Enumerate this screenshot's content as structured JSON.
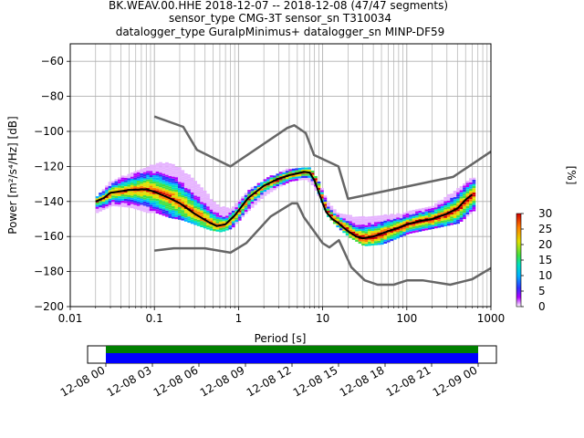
{
  "title_lines": [
    "BK.WEAV.00.HHE   2018-12-07 -- 2018-12-08  (47/47 segments)",
    "sensor_type CMG-3T sensor_sn T310034",
    "datalogger_type GuralpMinimus+ datalogger_sn MINP-DF59"
  ],
  "chart_data": {
    "type": "heatmap",
    "xlabel": "Period [s]",
    "ylabel": "Power [m²/s⁴/Hz] [dB]",
    "x_scale": "log",
    "xlim": [
      0.01,
      1000
    ],
    "ylim": [
      -200,
      -50
    ],
    "x_ticks": [
      0.01,
      0.1,
      1,
      10,
      100,
      1000
    ],
    "x_tick_labels": [
      "0.01",
      "0.1",
      "1",
      "10",
      "100",
      "1000"
    ],
    "y_ticks": [
      -60,
      -80,
      -100,
      -120,
      -140,
      -160,
      -180,
      -200
    ],
    "y_tick_labels": [
      "−60",
      "−80",
      "−100",
      "−120",
      "−140",
      "−160",
      "−180",
      "−200"
    ],
    "grid": true,
    "colorbar": {
      "label": "[%]",
      "range": [
        0,
        30
      ],
      "ticks": [
        0,
        5,
        10,
        15,
        20,
        25,
        30
      ],
      "tick_labels": [
        "0",
        "5",
        "10",
        "15",
        "20",
        "25",
        "30"
      ],
      "colormap": "pqlx"
    },
    "noise_model_color": "#666666",
    "nhnm": {
      "x": [
        0.1,
        0.22,
        0.32,
        0.8,
        3.8,
        4.6,
        6.3,
        7.9,
        15.4,
        20,
        354.8,
        1000
      ],
      "y": [
        -91.5,
        -97.4,
        -110.5,
        -120,
        -98,
        -96.5,
        -101,
        -113.5,
        -120,
        -138.5,
        -126,
        -111.5
      ]
    },
    "nlnm": {
      "x": [
        0.1,
        0.17,
        0.4,
        0.8,
        1.24,
        2.4,
        4.3,
        5,
        6,
        10,
        12,
        15.6,
        21.9,
        31.6,
        45,
        70,
        101,
        154,
        328,
        600,
        1000
      ],
      "y": [
        -168,
        -166.7,
        -166.7,
        -169.2,
        -163.7,
        -148.6,
        -141.1,
        -141.1,
        -149,
        -163.8,
        -166.2,
        -162.1,
        -177.5,
        -185,
        -187.5,
        -187.5,
        -185,
        -185,
        -187.5,
        -184.4,
        -178
      ]
    },
    "median_curve": {
      "x": [
        0.02,
        0.025,
        0.03,
        0.05,
        0.08,
        0.1,
        0.15,
        0.2,
        0.3,
        0.45,
        0.55,
        0.7,
        0.9,
        1.3,
        2,
        3,
        4,
        5,
        6,
        7,
        8,
        9,
        10,
        11,
        13,
        15,
        20,
        25,
        30,
        40,
        60,
        80,
        100,
        150,
        200,
        300,
        400,
        500,
        600
      ],
      "y": [
        -140,
        -138,
        -135,
        -133.5,
        -133,
        -134.5,
        -138,
        -141,
        -147,
        -152,
        -154,
        -153,
        -148,
        -138,
        -131,
        -127,
        -125,
        -124,
        -123,
        -123.5,
        -128,
        -135,
        -141,
        -146,
        -150,
        -152,
        -157,
        -160,
        -161,
        -160,
        -157,
        -155,
        -153,
        -151,
        -150,
        -147,
        -144,
        -139,
        -136
      ]
    },
    "density_bands": [
      {
        "x": 0.02,
        "low": -146,
        "high": -137
      },
      {
        "x": 0.03,
        "low": -142,
        "high": -128
      },
      {
        "x": 0.05,
        "low": -143,
        "high": -124
      },
      {
        "x": 0.08,
        "low": -146,
        "high": -120
      },
      {
        "x": 0.1,
        "low": -146,
        "high": -118
      },
      {
        "x": 0.15,
        "low": -149,
        "high": -118
      },
      {
        "x": 0.2,
        "low": -150,
        "high": -121
      },
      {
        "x": 0.3,
        "low": -153,
        "high": -129
      },
      {
        "x": 0.45,
        "low": -156,
        "high": -138
      },
      {
        "x": 0.6,
        "low": -157,
        "high": -143
      },
      {
        "x": 0.8,
        "low": -155,
        "high": -144
      },
      {
        "x": 1.2,
        "low": -146,
        "high": -134
      },
      {
        "x": 2,
        "low": -136,
        "high": -127
      },
      {
        "x": 3,
        "low": -131,
        "high": -123
      },
      {
        "x": 4,
        "low": -128,
        "high": -121
      },
      {
        "x": 6,
        "low": -127,
        "high": -120
      },
      {
        "x": 7,
        "low": -129,
        "high": -121
      },
      {
        "x": 9,
        "low": -138,
        "high": -130
      },
      {
        "x": 11,
        "low": -148,
        "high": -140
      },
      {
        "x": 15,
        "low": -155,
        "high": -147
      },
      {
        "x": 20,
        "low": -160,
        "high": -148
      },
      {
        "x": 30,
        "low": -165,
        "high": -149
      },
      {
        "x": 50,
        "low": -164,
        "high": -148
      },
      {
        "x": 100,
        "low": -158,
        "high": -146
      },
      {
        "x": 200,
        "low": -155,
        "high": -142
      },
      {
        "x": 400,
        "low": -152,
        "high": -132
      },
      {
        "x": 600,
        "low": -145,
        "high": -126
      }
    ],
    "coverage": {
      "x_tick_labels": [
        "12-08 00",
        "12-08 03",
        "12-08 06",
        "12-08 09",
        "12-08 12",
        "12-08 15",
        "12-08 18",
        "12-08 21",
        "12-09 00"
      ],
      "bar_colors": [
        "#008000",
        "#0000ff"
      ]
    }
  }
}
